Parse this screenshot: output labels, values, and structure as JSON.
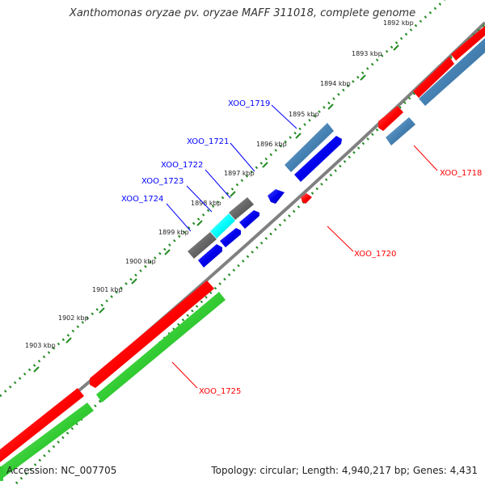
{
  "title": "Xanthomonas oryzae pv. oryzae MAFF 311018, complete genome",
  "footer": {
    "accession": "Accession: NC_007705",
    "topology": "Topology: circular; Length: 4,940,217 bp; Genes: 4,431"
  },
  "colors": {
    "backbone": "#808080",
    "tick_green": "#228B22",
    "label_blue": "#0000ff",
    "label_red": "#ff0000",
    "gene_red": "#ff0000",
    "gene_green": "#33cc33",
    "gene_steelblue": "#4682b4",
    "gene_blue": "#0000ee",
    "gene_gray": "#666666",
    "gene_cyan": "#00ffff"
  },
  "kbp_labels": [
    "1892 kbp",
    "1893 kbp",
    "1894 kbp",
    "1895 kbp",
    "1896 kbp",
    "1897 kbp",
    "1898 kbp",
    "1899 kbp",
    "1900 kbp",
    "1901 kbp",
    "1902 kbp",
    "1903 kbp"
  ],
  "gene_labels": [
    {
      "id": "xoo-1719",
      "text": "XOO_1719",
      "color": "blue"
    },
    {
      "id": "xoo-1721",
      "text": "XOO_1721",
      "color": "blue"
    },
    {
      "id": "xoo-1722",
      "text": "XOO_1722",
      "color": "blue"
    },
    {
      "id": "xoo-1723",
      "text": "XOO_1723",
      "color": "blue"
    },
    {
      "id": "xoo-1724",
      "text": "XOO_1724",
      "color": "blue"
    },
    {
      "id": "xoo-1718",
      "text": "XOO_1718",
      "color": "red"
    },
    {
      "id": "xoo-1720",
      "text": "XOO_1720",
      "color": "red"
    },
    {
      "id": "xoo-1725",
      "text": "XOO_1725",
      "color": "red"
    }
  ]
}
